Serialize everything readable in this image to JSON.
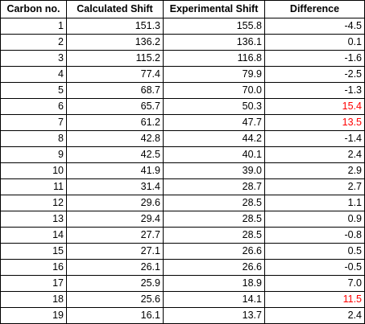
{
  "table": {
    "headers": [
      "Carbon no.",
      "Calculated Shift",
      "Experimental Shift",
      "Difference"
    ],
    "flag_color": "#ff0000",
    "rows": [
      {
        "carbon": "1",
        "calc": "151.3",
        "exp": "155.8",
        "diff": "-4.5",
        "flagged": false
      },
      {
        "carbon": "2",
        "calc": "136.2",
        "exp": "136.1",
        "diff": "0.1",
        "flagged": false
      },
      {
        "carbon": "3",
        "calc": "115.2",
        "exp": "116.8",
        "diff": "-1.6",
        "flagged": false
      },
      {
        "carbon": "4",
        "calc": "77.4",
        "exp": "79.9",
        "diff": "-2.5",
        "flagged": false
      },
      {
        "carbon": "5",
        "calc": "68.7",
        "exp": "70.0",
        "diff": "-1.3",
        "flagged": false
      },
      {
        "carbon": "6",
        "calc": "65.7",
        "exp": "50.3",
        "diff": "15.4",
        "flagged": true
      },
      {
        "carbon": "7",
        "calc": "61.2",
        "exp": "47.7",
        "diff": "13.5",
        "flagged": true
      },
      {
        "carbon": "8",
        "calc": "42.8",
        "exp": "44.2",
        "diff": "-1.4",
        "flagged": false
      },
      {
        "carbon": "9",
        "calc": "42.5",
        "exp": "40.1",
        "diff": "2.4",
        "flagged": false
      },
      {
        "carbon": "10",
        "calc": "41.9",
        "exp": "39.0",
        "diff": "2.9",
        "flagged": false
      },
      {
        "carbon": "11",
        "calc": "31.4",
        "exp": "28.7",
        "diff": "2.7",
        "flagged": false
      },
      {
        "carbon": "12",
        "calc": "29.6",
        "exp": "28.5",
        "diff": "1.1",
        "flagged": false
      },
      {
        "carbon": "13",
        "calc": "29.4",
        "exp": "28.5",
        "diff": "0.9",
        "flagged": false
      },
      {
        "carbon": "14",
        "calc": "27.7",
        "exp": "28.5",
        "diff": "-0.8",
        "flagged": false
      },
      {
        "carbon": "15",
        "calc": "27.1",
        "exp": "26.6",
        "diff": "0.5",
        "flagged": false
      },
      {
        "carbon": "16",
        "calc": "26.1",
        "exp": "26.6",
        "diff": "-0.5",
        "flagged": false
      },
      {
        "carbon": "17",
        "calc": "25.9",
        "exp": "18.9",
        "diff": "7.0",
        "flagged": false
      },
      {
        "carbon": "18",
        "calc": "25.6",
        "exp": "14.1",
        "diff": "11.5",
        "flagged": true
      },
      {
        "carbon": "19",
        "calc": "16.1",
        "exp": "13.7",
        "diff": "2.4",
        "flagged": false
      }
    ]
  }
}
